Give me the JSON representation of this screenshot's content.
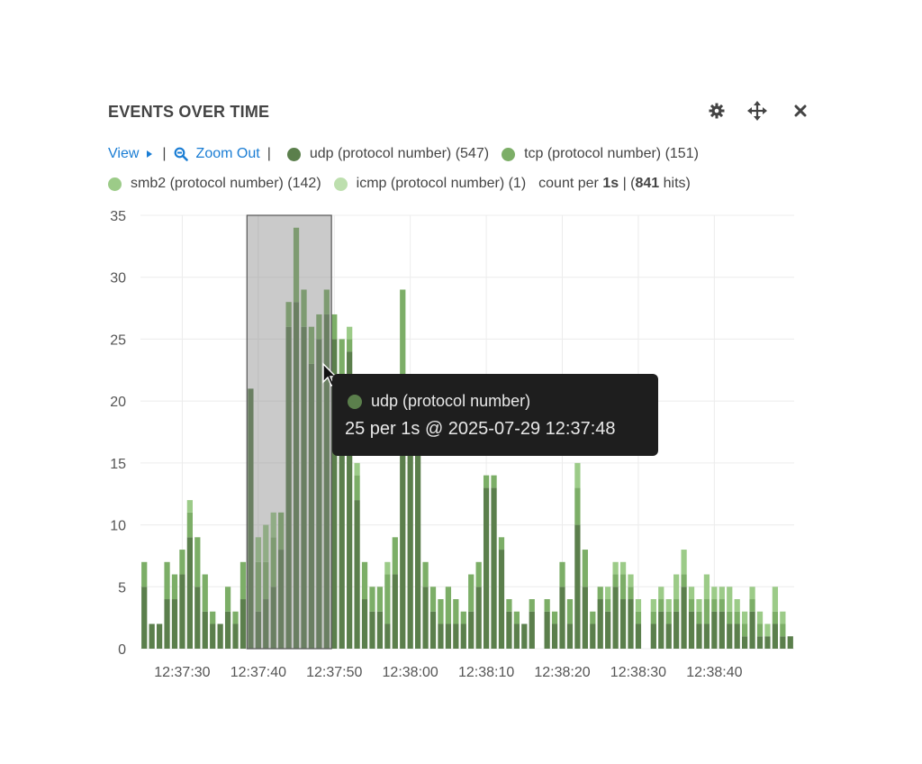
{
  "panel": {
    "title": "EVENTS OVER TIME"
  },
  "icons": {
    "settings": "gear-icon",
    "move": "move-icon",
    "close": "close-icon"
  },
  "controls": {
    "view_label": "View",
    "zoom_out_label": "Zoom Out"
  },
  "legend": {
    "items": [
      {
        "label": "udp (protocol number) (547)",
        "color": "#5b7f4c"
      },
      {
        "label": "tcp (protocol number) (151)",
        "color": "#7cae67"
      },
      {
        "label": "smb2 (protocol number) (142)",
        "color": "#9ccb88"
      },
      {
        "label": "icmp (protocol number) (1)",
        "color": "#bddfae"
      }
    ],
    "count_prefix": "count per",
    "interval": "1s",
    "hits_count": "841",
    "hits_suffix": "hits)"
  },
  "tooltip": {
    "series": "udp (protocol number)",
    "value_text": "25 per 1s @ 2025-07-29 12:37:48"
  },
  "chart_data": {
    "type": "bar",
    "stacked": true,
    "x": [
      "12:37:25",
      "12:37:26",
      "12:37:27",
      "12:37:28",
      "12:37:29",
      "12:37:30",
      "12:37:31",
      "12:37:32",
      "12:37:33",
      "12:37:34",
      "12:37:35",
      "12:37:36",
      "12:37:37",
      "12:37:38",
      "12:37:39",
      "12:37:40",
      "12:37:41",
      "12:37:42",
      "12:37:43",
      "12:37:44",
      "12:37:45",
      "12:37:46",
      "12:37:47",
      "12:37:48",
      "12:37:49",
      "12:37:50",
      "12:37:51",
      "12:37:52",
      "12:37:53",
      "12:37:54",
      "12:37:55",
      "12:37:56",
      "12:37:57",
      "12:37:58",
      "12:37:59",
      "12:38:00",
      "12:38:01",
      "12:38:02",
      "12:38:03",
      "12:38:04",
      "12:38:05",
      "12:38:06",
      "12:38:07",
      "12:38:08",
      "12:38:09",
      "12:38:10",
      "12:38:11",
      "12:38:12",
      "12:38:13",
      "12:38:14",
      "12:38:15",
      "12:38:16",
      "12:38:17",
      "12:38:18",
      "12:38:19",
      "12:38:20",
      "12:38:21",
      "12:38:22",
      "12:38:23",
      "12:38:24",
      "12:38:25",
      "12:38:26",
      "12:38:27",
      "12:38:28",
      "12:38:29",
      "12:38:30",
      "12:38:31",
      "12:38:32",
      "12:38:33",
      "12:38:34",
      "12:38:35",
      "12:38:36",
      "12:38:37",
      "12:38:38",
      "12:38:39",
      "12:38:40",
      "12:38:41",
      "12:38:42",
      "12:38:43",
      "12:38:44",
      "12:38:45",
      "12:38:46",
      "12:38:47",
      "12:38:48",
      "12:38:49",
      "12:38:50"
    ],
    "series": [
      {
        "name": "udp (protocol number)",
        "color": "#5b7f4c",
        "values": [
          5,
          2,
          2,
          4,
          4,
          6,
          9,
          5,
          3,
          2,
          2,
          3,
          2,
          4,
          21,
          3,
          4,
          5,
          8,
          26,
          28,
          26,
          23,
          25,
          27,
          25,
          20,
          24,
          12,
          4,
          3,
          3,
          2,
          6,
          20,
          16,
          19,
          5,
          3,
          2,
          2,
          2,
          2,
          3,
          5,
          13,
          13,
          8,
          3,
          2,
          2,
          3,
          0,
          3,
          2,
          5,
          2,
          10,
          5,
          2,
          4,
          3,
          5,
          4,
          4,
          2,
          0,
          2,
          3,
          2,
          3,
          5,
          3,
          2,
          2,
          3,
          3,
          2,
          2,
          1,
          3,
          1,
          1,
          2,
          1,
          1
        ]
      },
      {
        "name": "tcp (protocol number)",
        "color": "#7cae67",
        "values": [
          2,
          0,
          0,
          3,
          2,
          2,
          2,
          4,
          3,
          1,
          0,
          2,
          1,
          3,
          0,
          4,
          3,
          4,
          3,
          2,
          6,
          3,
          3,
          2,
          2,
          2,
          5,
          1,
          2,
          3,
          2,
          2,
          4,
          3,
          9,
          3,
          2,
          2,
          2,
          2,
          3,
          2,
          1,
          3,
          2,
          1,
          1,
          1,
          1,
          1,
          0,
          1,
          0,
          1,
          1,
          2,
          2,
          3,
          3,
          1,
          1,
          1,
          1,
          2,
          1,
          1,
          0,
          1,
          1,
          1,
          1,
          1,
          1,
          1,
          2,
          1,
          1,
          1,
          1,
          1,
          1,
          1,
          0,
          1,
          1,
          0
        ]
      },
      {
        "name": "smb2 (protocol number)",
        "color": "#9ccb88",
        "values": [
          0,
          0,
          0,
          0,
          0,
          0,
          1,
          0,
          0,
          0,
          0,
          0,
          0,
          0,
          0,
          2,
          3,
          2,
          0,
          0,
          0,
          0,
          0,
          0,
          0,
          0,
          0,
          1,
          1,
          0,
          0,
          0,
          1,
          0,
          0,
          0,
          0,
          0,
          0,
          0,
          0,
          0,
          0,
          0,
          0,
          0,
          0,
          0,
          0,
          0,
          0,
          0,
          0,
          0,
          0,
          0,
          0,
          2,
          0,
          0,
          0,
          1,
          1,
          1,
          1,
          1,
          0,
          1,
          1,
          1,
          2,
          2,
          1,
          1,
          2,
          1,
          1,
          2,
          1,
          1,
          1,
          1,
          1,
          2,
          1,
          0
        ]
      },
      {
        "name": "icmp (protocol number)",
        "color": "#bddfae",
        "values": [
          0,
          0,
          0,
          0,
          0,
          0,
          0,
          0,
          0,
          0,
          0,
          0,
          0,
          0,
          0,
          0,
          0,
          0,
          0,
          0,
          0,
          0,
          0,
          0,
          0,
          0,
          0,
          0,
          0,
          0,
          0,
          0,
          0,
          0,
          0,
          0,
          0,
          0,
          0,
          0,
          0,
          0,
          0,
          0,
          0,
          0,
          0,
          0,
          0,
          0,
          0,
          0,
          0,
          0,
          0,
          0,
          0,
          0,
          0,
          0,
          0,
          0,
          0,
          0,
          0,
          0,
          0,
          0,
          0,
          0,
          0,
          0,
          0,
          0,
          0,
          0,
          0,
          0,
          0,
          0,
          0,
          0,
          0,
          0,
          0,
          0
        ]
      }
    ],
    "ylim": [
      0,
      35
    ],
    "yticks": [
      0,
      5,
      10,
      15,
      20,
      25,
      30,
      35
    ],
    "xticks": [
      "12:37:30",
      "12:37:40",
      "12:37:50",
      "12:38:00",
      "12:38:10",
      "12:38:20",
      "12:38:30",
      "12:38:40"
    ],
    "selection": {
      "from": "12:37:39",
      "to": "12:37:50"
    },
    "grid": true
  }
}
